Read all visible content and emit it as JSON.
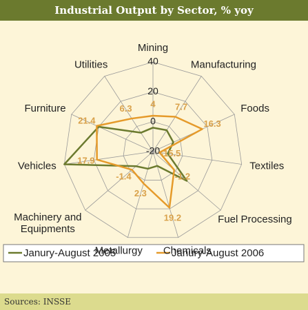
{
  "chart_data": {
    "type": "radar",
    "title": "Industrial Output by Sector, % yoy",
    "categories": [
      "Mining",
      "Manufacturing",
      "Foods",
      "Textiles",
      "Fuel Processing",
      "Chemicals",
      "Metallurgy",
      "Machinery and Equipments",
      "Vehicles",
      "Furniture",
      "Utilities"
    ],
    "ylim": [
      -20,
      40
    ],
    "yticks": [
      -20,
      0,
      20,
      40
    ],
    "series": [
      {
        "name": "Janury-August 2005",
        "color": "#6b7a2e",
        "values": [
          -4,
          -3,
          -5,
          -10,
          10,
          -10,
          -8,
          -5,
          40,
          20,
          -5
        ]
      },
      {
        "name": "Janury-August 2006",
        "color": "#e59a2a",
        "values": [
          4,
          7.7,
          16.3,
          -15.5,
          -1.2,
          19.2,
          2.3,
          -1.4,
          17.9,
          21.4,
          6.3
        ],
        "labels_color": "#d9a14a"
      }
    ],
    "legend": "bottom",
    "source": "Sources: INSSE"
  }
}
